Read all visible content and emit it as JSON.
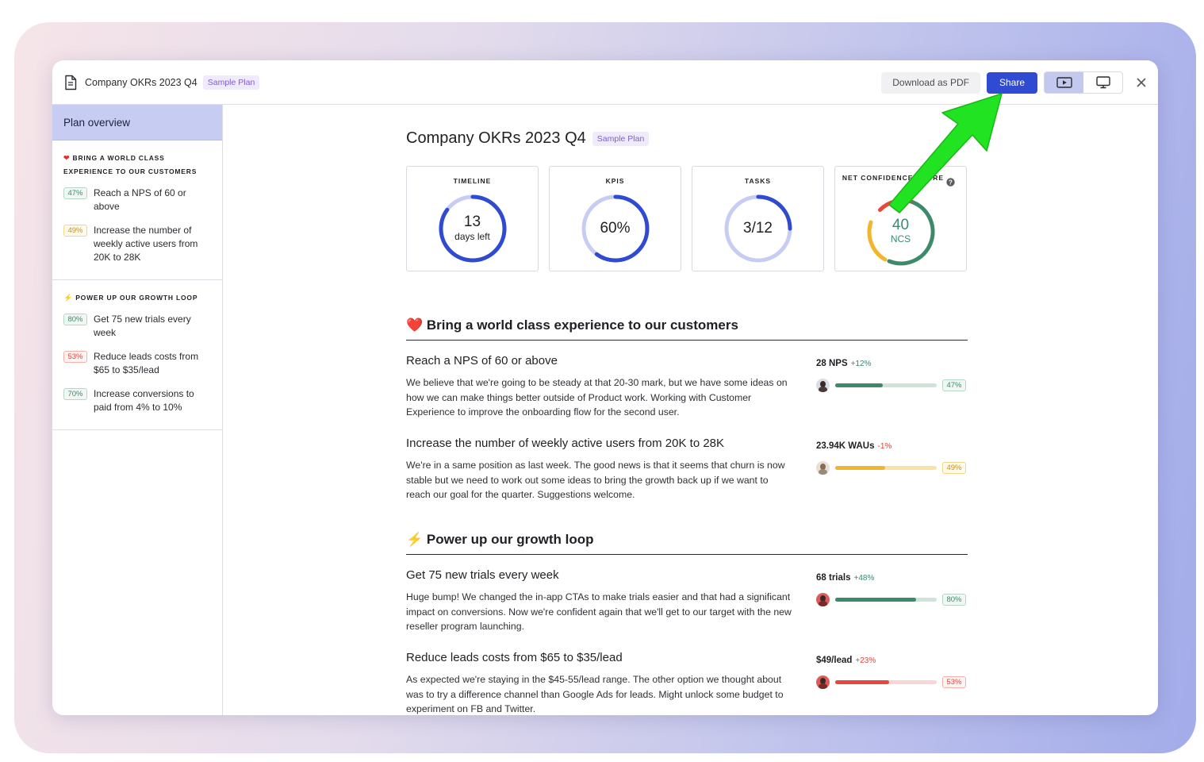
{
  "window": {
    "title": "Company OKRs 2023 Q4",
    "badge": "Sample Plan",
    "actions": {
      "download_label": "Download as PDF",
      "share_label": "Share"
    }
  },
  "sidebar": {
    "header": "Plan overview",
    "sections": [
      {
        "title": "Bring a world class experience to our customers",
        "icon": "heart",
        "items": [
          {
            "pct": "47%",
            "label": "Reach a NPS of 60 or above",
            "tone": "green"
          },
          {
            "pct": "49%",
            "label": "Increase the number of weekly active users from 20K to 28K",
            "tone": "yellow"
          }
        ]
      },
      {
        "title": "Power up our growth loop",
        "icon": "lightning",
        "items": [
          {
            "pct": "80%",
            "label": "Get 75 new trials every week",
            "tone": "green"
          },
          {
            "pct": "53%",
            "label": "Reduce leads costs from $65 to $35/lead",
            "tone": "red"
          },
          {
            "pct": "70%",
            "label": "Increase conversions to paid from 4% to 10%",
            "tone": "green"
          }
        ]
      }
    ]
  },
  "main": {
    "title": "Company OKRs 2023 Q4",
    "badge": "Sample Plan",
    "cards": [
      {
        "label": "TIMELINE",
        "value": "13",
        "sub": "days left",
        "progress": 0.85
      },
      {
        "label": "KPIS",
        "value": "60%",
        "progress": 0.6
      },
      {
        "label": "TASKS",
        "value": "3/12",
        "progress": 0.25
      },
      {
        "label": "NET CONFIDENCE SCORE",
        "value": "40",
        "sub": "NCS"
      }
    ],
    "sections": [
      {
        "title": "Bring a world class experience to our customers",
        "icon": "heart",
        "okrs": [
          {
            "title": "Reach a NPS of 60 or above",
            "desc": "We believe that we're going to be steady at that 20-30 mark, but we have some ideas on how we can make things better outside of Product work. Working with Customer Experience to improve the onboarding flow for the second user.",
            "metric": "28 NPS",
            "delta": "+12%",
            "delta_tone": "pos",
            "pct_label": "47%",
            "progress": 0.47,
            "tone": "green"
          },
          {
            "title": "Increase the number of weekly active users from 20K to 28K",
            "desc": "We're in a same position as last week. The good news is that it seems that churn is now stable but we need to work out some ideas to bring the growth back up if we want to reach our goal for the quarter. Suggestions welcome.",
            "metric": "23.94K WAUs",
            "delta": "-1%",
            "delta_tone": "neg",
            "pct_label": "49%",
            "progress": 0.49,
            "tone": "yellow"
          }
        ]
      },
      {
        "title": "Power up our growth loop",
        "icon": "lightning",
        "okrs": [
          {
            "title": "Get 75 new trials every week",
            "desc": "Huge bump! We changed the in-app CTAs to make trials easier and that had a significant impact on conversions. Now we're confident again that we'll get to our target with the new reseller program launching.",
            "metric": "68 trials",
            "delta": "+48%",
            "delta_tone": "pos",
            "pct_label": "80%",
            "progress": 0.8,
            "tone": "green"
          },
          {
            "title": "Reduce leads costs from $65 to $35/lead",
            "desc": "As expected we're staying in the $45-55/lead range. The other option we thought about was to try a difference channel than Google Ads for leads. Might unlock some budget to experiment on FB and Twitter.",
            "metric": "$49/lead",
            "delta": "+23%",
            "delta_tone": "neg",
            "pct_label": "53%",
            "progress": 0.53,
            "tone": "red"
          }
        ]
      }
    ]
  },
  "colors": {
    "accent": "#2f4bd1",
    "green": "#3c8a6b",
    "yellow": "#f2b62e",
    "red": "#e8473c",
    "ring_track": "#c7ccf3",
    "annotation_arrow": "#22e322"
  }
}
